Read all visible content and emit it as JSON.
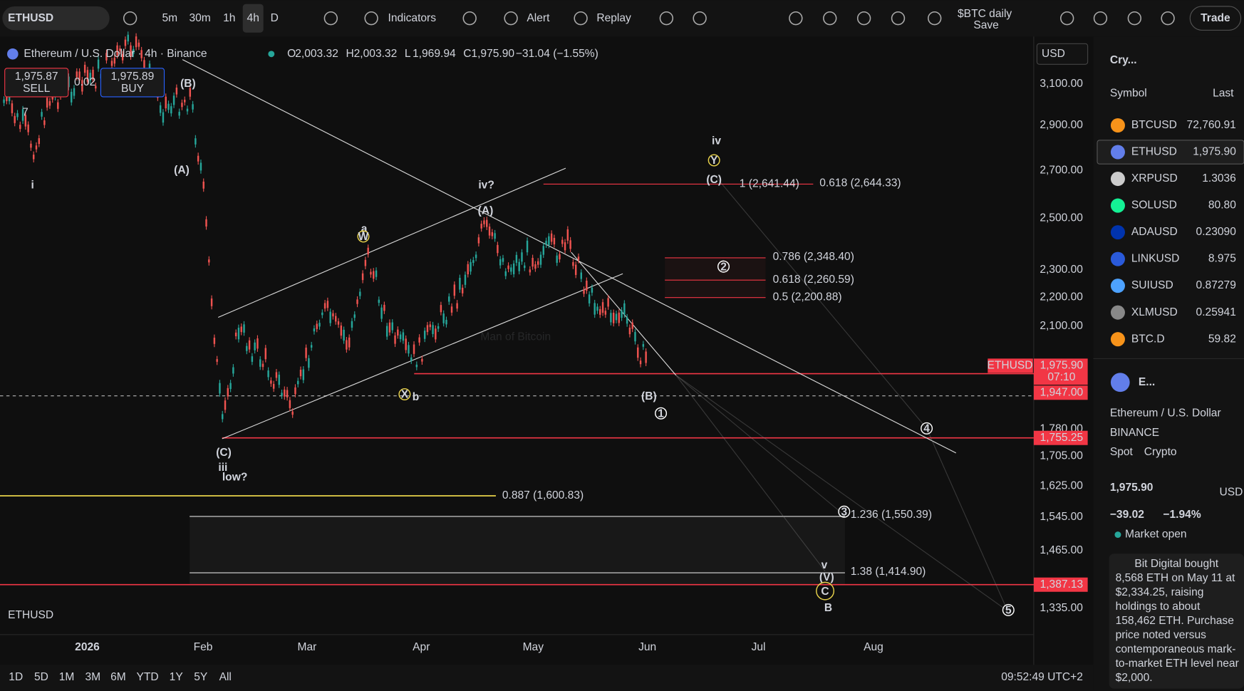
{
  "toolbar": {
    "symbol": "ETHUSD",
    "intervals": [
      "5m",
      "30m",
      "1h",
      "4h",
      "D"
    ],
    "indicators": "Indicators",
    "alert": "Alert",
    "replay": "Replay",
    "layout": "$BTC daily",
    "save": "Save",
    "trade": "Trade"
  },
  "legend": {
    "title": "Ethereum / U.S. Dollar · 4h · Binance",
    "o_label": "O",
    "o": "2,003.32",
    "h_label": "H",
    "h": "2,003.32",
    "l_label": "L",
    "l": "1,969.94",
    "c_label": "C",
    "c": "1,975.90",
    "change": "−31.04 (−1.55%)",
    "sell_price": "1,975.87",
    "sell": "SELL",
    "spread": "0.02",
    "buy_price": "1,975.89",
    "buy": "BUY",
    "indicator_count": "7",
    "currency": "USD"
  },
  "price_axis": [
    "3,100.00",
    "2,900.00",
    "2,700.00",
    "2,500.00",
    "2,300.00",
    "2,200.00",
    "2,100.00",
    "1,780.00",
    "1,705.00",
    "1,625.00",
    "1,545.00",
    "1,465.00",
    "1,335.00"
  ],
  "price_tags": {
    "symbol": "ETHUSD",
    "last": "1,975.90",
    "countdown": "07:10",
    "level1": "1,947.00",
    "level2": "1,755.25",
    "level3": "1,387.13"
  },
  "time_axis": [
    "2026",
    "Feb",
    "Mar",
    "Apr",
    "May",
    "Jun",
    "Jul",
    "Aug"
  ],
  "fib_labels": [
    "0.618 (2,644.33)",
    "1 (2,641.44)",
    "0.786 (2,348.40)",
    "0.618 (2,260.59)",
    "0.5 (2,200.88)",
    "0.887 (1,600.83)",
    "1.236 (1,550.39)",
    "1.38 (1,414.90)"
  ],
  "wave_labels": [
    "i",
    "(A)",
    "(B)",
    "(C)",
    "iii",
    "low?",
    "a",
    "W",
    "X",
    "b",
    "iv?",
    "(A)",
    "iv",
    "Y",
    "(C)",
    "(B)",
    "1",
    "2",
    "3",
    "4",
    "5",
    "v",
    "(V)",
    "C",
    "B"
  ],
  "watermark": "Man of Bitcoin",
  "bottom_bar": {
    "ranges": [
      "1D",
      "5D",
      "1M",
      "3M",
      "6M",
      "YTD",
      "1Y",
      "5Y",
      "All"
    ],
    "clock": "09:52:49 UTC+2"
  },
  "watchlist": {
    "title": "Cry...",
    "col_symbol": "Symbol",
    "col_last": "Last",
    "rows": [
      [
        "BTCUSD",
        "72,760.91"
      ],
      [
        "ETHUSD",
        "1,975.90"
      ],
      [
        "XRPUSD",
        "1.3036"
      ],
      [
        "SOLUSD",
        "80.80"
      ],
      [
        "ADAUSD",
        "0.23090"
      ],
      [
        "LINKUSD",
        "8.975"
      ],
      [
        "SUIUSD",
        "0.87279"
      ],
      [
        "XLMUSD",
        "0.25941"
      ],
      [
        "BTC.D",
        "59.82"
      ]
    ]
  },
  "details": {
    "short": "E...",
    "name": "Ethereum / U.S. Dollar",
    "exchange": "BINANCE",
    "kind": "Spot",
    "market": "Crypto",
    "price": "1,975.90",
    "currency": "USD",
    "change": "−39.02",
    "change_pct": "−1.94%",
    "status": "Market open",
    "news": [
      "Bit Digital bought",
      "8,568 ETH on May 11 at",
      "$2,334.25, raising",
      "holdings to about",
      "158,462 ETH. Purchase",
      "price noted versus",
      "contemporaneous mark-",
      "to-market ETH level near",
      "$2,000."
    ]
  }
}
